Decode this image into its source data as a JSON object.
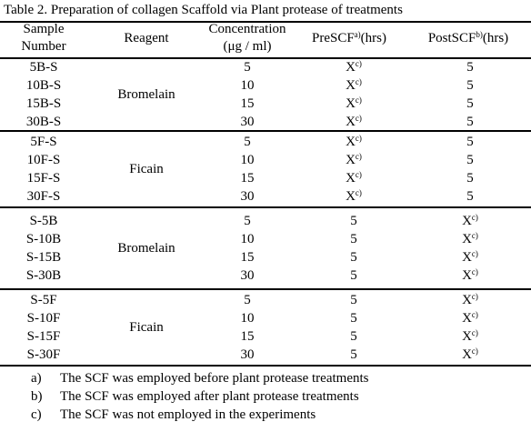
{
  "table": {
    "caption": "Table 2. Preparation of collagen Scaffold via Plant protease of treatments",
    "headers": {
      "sample_line1": "Sample",
      "sample_line2": "Number",
      "reagent": "Reagent",
      "concentration_line1": "Concentration",
      "concentration_line2": "(μg / ml)",
      "pre": "PreSCF",
      "pre_sup": "a)",
      "pre_unit": "(hrs)",
      "post": "PostSCF",
      "post_sup": "b)",
      "post_unit": "(hrs)"
    },
    "groups": [
      {
        "reagent": "Bromelain",
        "rows": [
          {
            "sample": "5B-S",
            "conc": "5",
            "pre": "X",
            "pre_sup": "c)",
            "post": "5",
            "post_sup": ""
          },
          {
            "sample": "10B-S",
            "conc": "10",
            "pre": "X",
            "pre_sup": "c)",
            "post": "5",
            "post_sup": ""
          },
          {
            "sample": "15B-S",
            "conc": "15",
            "pre": "X",
            "pre_sup": "c)",
            "post": "5",
            "post_sup": ""
          },
          {
            "sample": "30B-S",
            "conc": "30",
            "pre": "X",
            "pre_sup": "c)",
            "post": "5",
            "post_sup": ""
          }
        ]
      },
      {
        "reagent": "Ficain",
        "rows": [
          {
            "sample": "5F-S",
            "conc": "5",
            "pre": "X",
            "pre_sup": "c)",
            "post": "5",
            "post_sup": ""
          },
          {
            "sample": "10F-S",
            "conc": "10",
            "pre": "X",
            "pre_sup": "c)",
            "post": "5",
            "post_sup": ""
          },
          {
            "sample": "15F-S",
            "conc": "15",
            "pre": "X",
            "pre_sup": "c)",
            "post": "5",
            "post_sup": ""
          },
          {
            "sample": "30F-S",
            "conc": "30",
            "pre": "X",
            "pre_sup": "c)",
            "post": "5",
            "post_sup": ""
          }
        ]
      },
      {
        "reagent": "Bromelain",
        "rows": [
          {
            "sample": "S-5B",
            "conc": "5",
            "pre": "5",
            "pre_sup": "",
            "post": "X",
            "post_sup": "c)"
          },
          {
            "sample": "S-10B",
            "conc": "10",
            "pre": "5",
            "pre_sup": "",
            "post": "X",
            "post_sup": "c)"
          },
          {
            "sample": "S-15B",
            "conc": "15",
            "pre": "5",
            "pre_sup": "",
            "post": "X",
            "post_sup": "c)"
          },
          {
            "sample": "S-30B",
            "conc": "30",
            "pre": "5",
            "pre_sup": "",
            "post": "X",
            "post_sup": "c)"
          }
        ]
      },
      {
        "reagent": "Ficain",
        "rows": [
          {
            "sample": "S-5F",
            "conc": "5",
            "pre": "5",
            "pre_sup": "",
            "post": "X",
            "post_sup": "c)"
          },
          {
            "sample": "S-10F",
            "conc": "10",
            "pre": "5",
            "pre_sup": "",
            "post": "X",
            "post_sup": "c)"
          },
          {
            "sample": "S-15F",
            "conc": "15",
            "pre": "5",
            "pre_sup": "",
            "post": "X",
            "post_sup": "c)"
          },
          {
            "sample": "S-30F",
            "conc": "30",
            "pre": "5",
            "pre_sup": "",
            "post": "X",
            "post_sup": "c)"
          }
        ]
      }
    ],
    "footnotes": [
      {
        "mark": "a)",
        "text": "The SCF was employed before plant protease treatments"
      },
      {
        "mark": "b)",
        "text": "The SCF was employed after plant protease treatments"
      },
      {
        "mark": "c)",
        "text": "The SCF was not employed in the experiments"
      }
    ]
  }
}
